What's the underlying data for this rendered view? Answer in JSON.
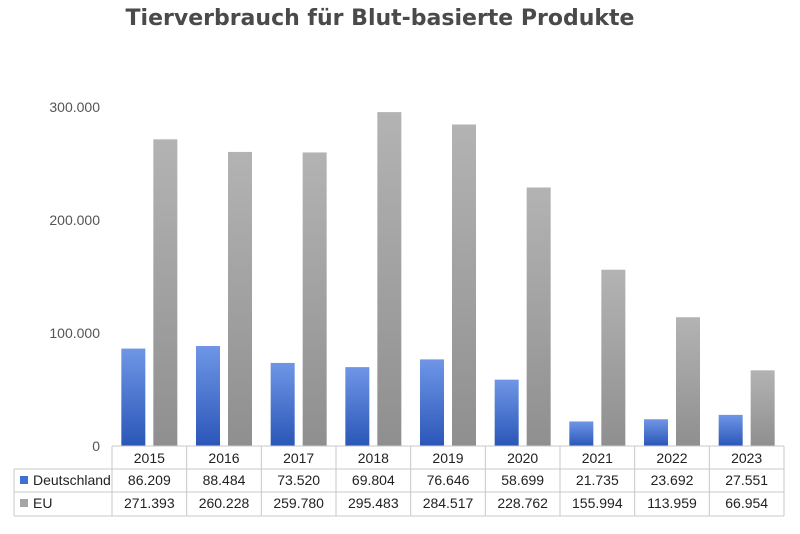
{
  "chart_data": {
    "type": "bar",
    "title": "Tierverbrauch für Blut-basierte Produkte",
    "categories": [
      "2015",
      "2016",
      "2017",
      "2018",
      "2019",
      "2020",
      "2021",
      "2022",
      "2023"
    ],
    "series": [
      {
        "name": "Deutschland",
        "color": "#3f6fd0",
        "values": [
          86209,
          88484,
          73520,
          69804,
          76646,
          58699,
          21735,
          23692,
          27551
        ],
        "labels": [
          "86.209",
          "88.484",
          "73.520",
          "69.804",
          "76.646",
          "58.699",
          "21.735",
          "23.692",
          "27.551"
        ]
      },
      {
        "name": "EU",
        "color": "#a5a5a5",
        "values": [
          271393,
          260228,
          259780,
          295483,
          284517,
          228762,
          155994,
          113959,
          66954
        ],
        "labels": [
          "271.393",
          "260.228",
          "259.780",
          "295.483",
          "284.517",
          "228.762",
          "155.994",
          "113.959",
          "66.954"
        ]
      }
    ],
    "ylim": [
      0,
      300000
    ],
    "yticks": [
      {
        "value": 0,
        "label": "0"
      },
      {
        "value": 100000,
        "label": "100.000"
      },
      {
        "value": 200000,
        "label": "200.000"
      },
      {
        "value": 300000,
        "label": "300.000"
      }
    ],
    "grid": false,
    "legend": "data-table"
  }
}
